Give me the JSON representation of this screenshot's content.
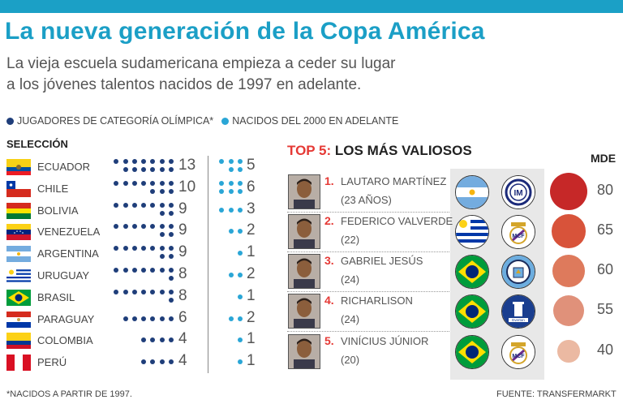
{
  "title": "La nueva generación de la Copa América",
  "subtitle_lines": [
    "La vieja escuela sudamericana empieza a ceder su lugar",
    "a los jóvenes talentos nacidos de 1997 en adelante."
  ],
  "legend": {
    "olympic": "JUGADORES DE CATEGORÍA OLÍMPICA*",
    "born2000": "NACIDOS DEL 2000 EN ADELANTE",
    "colors": {
      "olympic": "#1f3e7a",
      "born2000": "#2aa6d6"
    }
  },
  "section_label": "SELECCIÓN",
  "chart_data": [
    {
      "type": "table",
      "title": "SELECCIÓN",
      "columns": [
        "Selección",
        "Jugadores de categoría olímpica",
        "Nacidos del 2000 en adelante"
      ],
      "rows": [
        {
          "country": "ECUADOR",
          "olympic": 13,
          "born2000": 5
        },
        {
          "country": "CHILE",
          "olympic": 10,
          "born2000": 6
        },
        {
          "country": "BOLIVIA",
          "olympic": 9,
          "born2000": 3
        },
        {
          "country": "VENEZUELA",
          "olympic": 9,
          "born2000": 2
        },
        {
          "country": "ARGENTINA",
          "olympic": 9,
          "born2000": 1
        },
        {
          "country": "URUGUAY",
          "olympic": 8,
          "born2000": 2
        },
        {
          "country": "BRASIL",
          "olympic": 8,
          "born2000": 1
        },
        {
          "country": "PARAGUAY",
          "olympic": 6,
          "born2000": 2
        },
        {
          "country": "COLOMBIA",
          "olympic": 4,
          "born2000": 1
        },
        {
          "country": "PERÚ",
          "olympic": 4,
          "born2000": 1
        }
      ]
    },
    {
      "type": "scatter",
      "title_prefix": "TOP 5:",
      "title": "LOS MÁS VALIOSOS",
      "unit_label": "MDE",
      "players": [
        {
          "rank": "1.",
          "name": "LAUTARO MARTÍNEZ",
          "age": "(23 AÑOS)",
          "country": "Argentina",
          "club": "Inter",
          "value": 80
        },
        {
          "rank": "2.",
          "name": "FEDERICO VALVERDE",
          "age": "(22)",
          "country": "Uruguay",
          "club": "Real Madrid",
          "value": 65
        },
        {
          "rank": "3.",
          "name": "GABRIEL JESÚS",
          "age": "(24)",
          "country": "Brasil",
          "club": "Manchester City",
          "value": 60
        },
        {
          "rank": "4.",
          "name": "RICHARLISON",
          "age": "(24)",
          "country": "Brasil",
          "club": "Everton",
          "value": 55
        },
        {
          "rank": "5.",
          "name": "VINÍCIUS JÚNIOR",
          "age": "(20)",
          "country": "Brasil",
          "club": "Real Madrid",
          "value": 40
        }
      ]
    }
  ],
  "footnote": "*NACIDOS A PARTIR DE 1997.",
  "source": "FUENTE: TRANSFERMARKT"
}
